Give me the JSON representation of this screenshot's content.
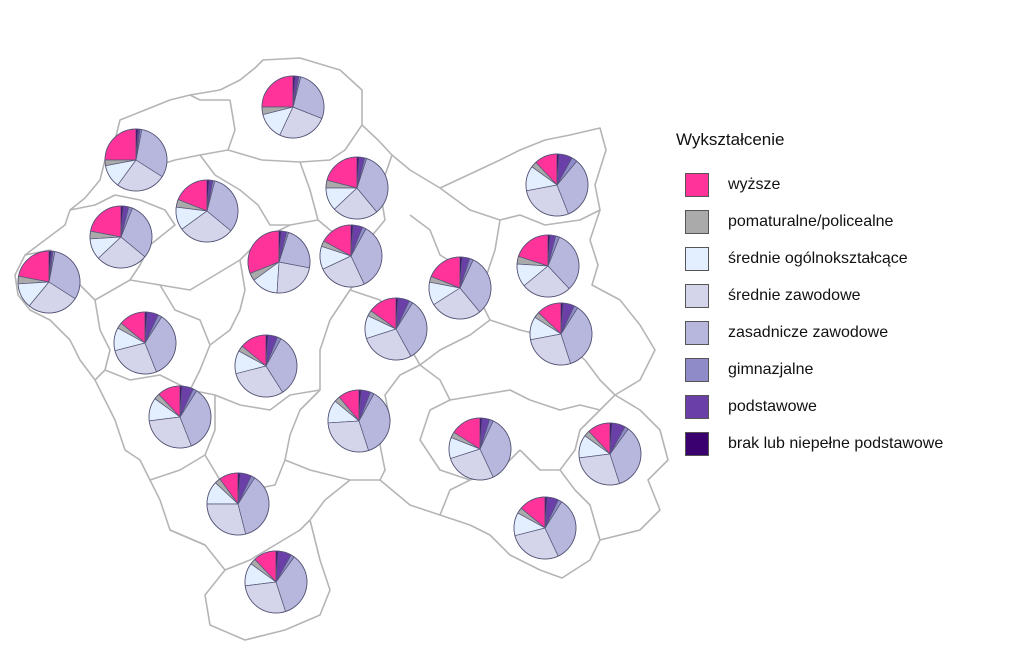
{
  "legend": {
    "title": "Wykształcenie",
    "items": [
      {
        "label": "wyższe",
        "color": "#ff3399"
      },
      {
        "label": "pomaturalne/policealne",
        "color": "#aaaaaa"
      },
      {
        "label": "średnie ogólnokształcące",
        "color": "#e3efff"
      },
      {
        "label": "średnie zawodowe",
        "color": "#d4d4ea"
      },
      {
        "label": "zasadnicze zawodowe",
        "color": "#b7b7dd"
      },
      {
        "label": "gimnazjalne",
        "color": "#8f8ac8"
      },
      {
        "label": "podstawowe",
        "color": "#6a40a8"
      },
      {
        "label": "brak lub niepełne podstawowe",
        "color": "#3a0070"
      }
    ]
  },
  "chart_data": {
    "type": "pie",
    "series_labels": [
      "wyższe",
      "pomaturalne/policealne",
      "średnie ogólnokształcące",
      "średnie zawodowe",
      "zasadnicze zawodowe",
      "gimnazjalne",
      "podstawowe",
      "brak lub niepełne podstawowe"
    ],
    "pies": [
      {
        "values": [
          25,
          4,
          14,
          26,
          27,
          1,
          2,
          1
        ]
      },
      {
        "values": [
          25,
          3,
          12,
          26,
          31,
          1,
          1,
          1
        ]
      },
      {
        "values": [
          22,
          4,
          11,
          27,
          30,
          2,
          3,
          1
        ]
      },
      {
        "values": [
          22,
          4,
          13,
          27,
          31,
          1,
          1,
          1
        ]
      },
      {
        "values": [
          19,
          4,
          12,
          29,
          32,
          1,
          2,
          1
        ]
      },
      {
        "values": [
          21,
          4,
          12,
          24,
          34,
          1,
          3,
          1
        ]
      },
      {
        "values": [
          12,
          3,
          13,
          28,
          33,
          3,
          7,
          1
        ]
      },
      {
        "values": [
          31,
          4,
          14,
          23,
          23,
          1,
          3,
          1
        ]
      },
      {
        "values": [
          17,
          3,
          12,
          25,
          35,
          2,
          5,
          1
        ]
      },
      {
        "values": [
          20,
          4,
          12,
          26,
          32,
          2,
          3,
          1
        ]
      },
      {
        "values": [
          19,
          3,
          12,
          27,
          32,
          2,
          4,
          1
        ]
      },
      {
        "values": [
          14,
          3,
          12,
          27,
          35,
          2,
          6,
          1
        ]
      },
      {
        "values": [
          15,
          3,
          12,
          28,
          33,
          2,
          6,
          1
        ]
      },
      {
        "values": [
          13,
          3,
          12,
          27,
          36,
          2,
          6,
          1
        ]
      },
      {
        "values": [
          14,
          3,
          12,
          30,
          33,
          2,
          5,
          1
        ]
      },
      {
        "values": [
          12,
          3,
          12,
          29,
          35,
          2,
          6,
          1
        ]
      },
      {
        "values": [
          11,
          3,
          12,
          29,
          37,
          2,
          5,
          1
        ]
      },
      {
        "values": [
          16,
          3,
          11,
          27,
          36,
          2,
          4,
          1
        ]
      },
      {
        "values": [
          12,
          3,
          12,
          28,
          35,
          2,
          7,
          1
        ]
      },
      {
        "values": [
          10,
          3,
          12,
          29,
          37,
          2,
          6,
          1
        ]
      },
      {
        "values": [
          14,
          3,
          12,
          28,
          34,
          2,
          6,
          1
        ]
      },
      {
        "values": [
          12,
          3,
          12,
          28,
          35,
          2,
          7,
          1
        ]
      },
      {
        "values": [
          13,
          4,
          12,
          28,
          35,
          2,
          5,
          1
        ]
      },
      {
        "values": [
          20,
          4,
          12,
          30,
          30,
          1,
          2,
          1
        ]
      },
      {
        "values": [
          13,
          3,
          12,
          29,
          37,
          2,
          3,
          1
        ]
      },
      {
        "values": [
          11,
          3,
          12,
          27,
          36,
          2,
          8,
          1
        ]
      },
      {
        "values": [
          19,
          5,
          11,
          30,
          32,
          1,
          1,
          1
        ]
      }
    ]
  }
}
